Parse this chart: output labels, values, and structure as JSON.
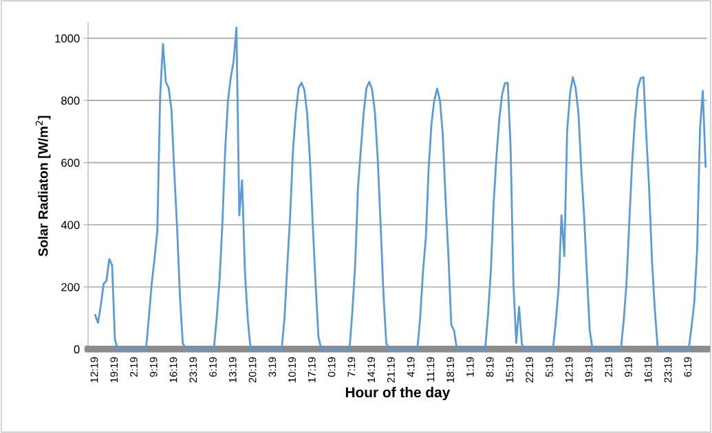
{
  "chart_data": {
    "type": "line",
    "xlabel": "Hour of the day",
    "ylabel": "Solar Radiaton [W/m$^{2}$]",
    "ylim": [
      0,
      1050
    ],
    "yticks": [
      0,
      200,
      400,
      600,
      800,
      1000
    ],
    "grid": "y",
    "marker": "none",
    "line_style": "solid",
    "categories": [
      "12:19",
      null,
      null,
      null,
      null,
      null,
      null,
      "19:19",
      null,
      null,
      null,
      null,
      null,
      null,
      "2:19",
      null,
      null,
      null,
      null,
      null,
      null,
      "9:19",
      null,
      null,
      null,
      null,
      null,
      null,
      "16:19",
      null,
      null,
      null,
      null,
      null,
      null,
      "23:19",
      null,
      null,
      null,
      null,
      null,
      null,
      "6:19",
      null,
      null,
      null,
      null,
      null,
      null,
      "13:19",
      null,
      null,
      null,
      null,
      null,
      null,
      "20:19",
      null,
      null,
      null,
      null,
      null,
      null,
      "3:19",
      null,
      null,
      null,
      null,
      null,
      null,
      "10:19",
      null,
      null,
      null,
      null,
      null,
      null,
      "17:19",
      null,
      null,
      null,
      null,
      null,
      null,
      "0:19",
      null,
      null,
      null,
      null,
      null,
      null,
      "7:19",
      null,
      null,
      null,
      null,
      null,
      null,
      "14:19",
      null,
      null,
      null,
      null,
      null,
      null,
      "21:19",
      null,
      null,
      null,
      null,
      null,
      null,
      "4:19",
      null,
      null,
      null,
      null,
      null,
      null,
      "11:19",
      null,
      null,
      null,
      null,
      null,
      null,
      "18:19",
      null,
      null,
      null,
      null,
      null,
      null,
      "1:19",
      null,
      null,
      null,
      null,
      null,
      null,
      "8:19",
      null,
      null,
      null,
      null,
      null,
      null,
      "15:19",
      null,
      null,
      null,
      null,
      null,
      null,
      "22:19",
      null,
      null,
      null,
      null,
      null,
      null,
      "5:19",
      null,
      null,
      null,
      null,
      null,
      null,
      "12:19",
      null,
      null,
      null,
      null,
      null,
      null,
      "19:19",
      null,
      null,
      null,
      null,
      null,
      null,
      "2:19",
      null,
      null,
      null,
      null,
      null,
      null,
      "9:19",
      null,
      null,
      null,
      null,
      null,
      null,
      "16:19",
      null,
      null,
      null,
      null,
      null,
      null,
      "23:19",
      null,
      null,
      null,
      null,
      null,
      null,
      "6:19",
      null,
      null,
      null,
      null,
      null,
      null
    ],
    "series": [
      {
        "color": "#5b9bd5",
        "values": [
          110,
          85,
          140,
          210,
          220,
          290,
          270,
          30,
          0,
          0,
          0,
          0,
          0,
          0,
          0,
          0,
          0,
          0,
          0,
          100,
          210,
          290,
          380,
          815,
          982,
          860,
          840,
          771,
          570,
          390,
          170,
          20,
          0,
          0,
          0,
          0,
          0,
          0,
          0,
          0,
          0,
          0,
          0,
          100,
          220,
          400,
          640,
          800,
          875,
          927,
          1034,
          430,
          543,
          250,
          96,
          0,
          0,
          0,
          0,
          0,
          0,
          0,
          0,
          0,
          0,
          0,
          0,
          100,
          270,
          430,
          640,
          760,
          840,
          857,
          835,
          760,
          610,
          400,
          210,
          40,
          0,
          0,
          0,
          0,
          0,
          0,
          0,
          0,
          0,
          0,
          0,
          120,
          270,
          520,
          640,
          760,
          840,
          860,
          835,
          760,
          610,
          400,
          180,
          20,
          0,
          0,
          0,
          0,
          0,
          0,
          0,
          0,
          0,
          0,
          0,
          100,
          250,
          357,
          580,
          725,
          800,
          838,
          800,
          690,
          480,
          300,
          78,
          60,
          0,
          0,
          0,
          0,
          0,
          0,
          0,
          0,
          0,
          0,
          0,
          110,
          250,
          468,
          620,
          740,
          820,
          855,
          857,
          650,
          210,
          20,
          136,
          15,
          0,
          0,
          0,
          0,
          0,
          0,
          0,
          0,
          0,
          0,
          0,
          90,
          200,
          430,
          299,
          700,
          820,
          875,
          840,
          760,
          580,
          430,
          240,
          60,
          0,
          0,
          0,
          0,
          0,
          0,
          0,
          0,
          0,
          0,
          0,
          90,
          210,
          410,
          600,
          740,
          840,
          871,
          875,
          690,
          520,
          290,
          130,
          10,
          0,
          0,
          0,
          0,
          0,
          0,
          0,
          0,
          0,
          0,
          0,
          70,
          151,
          321,
          705,
          831,
          587
        ]
      }
    ]
  }
}
